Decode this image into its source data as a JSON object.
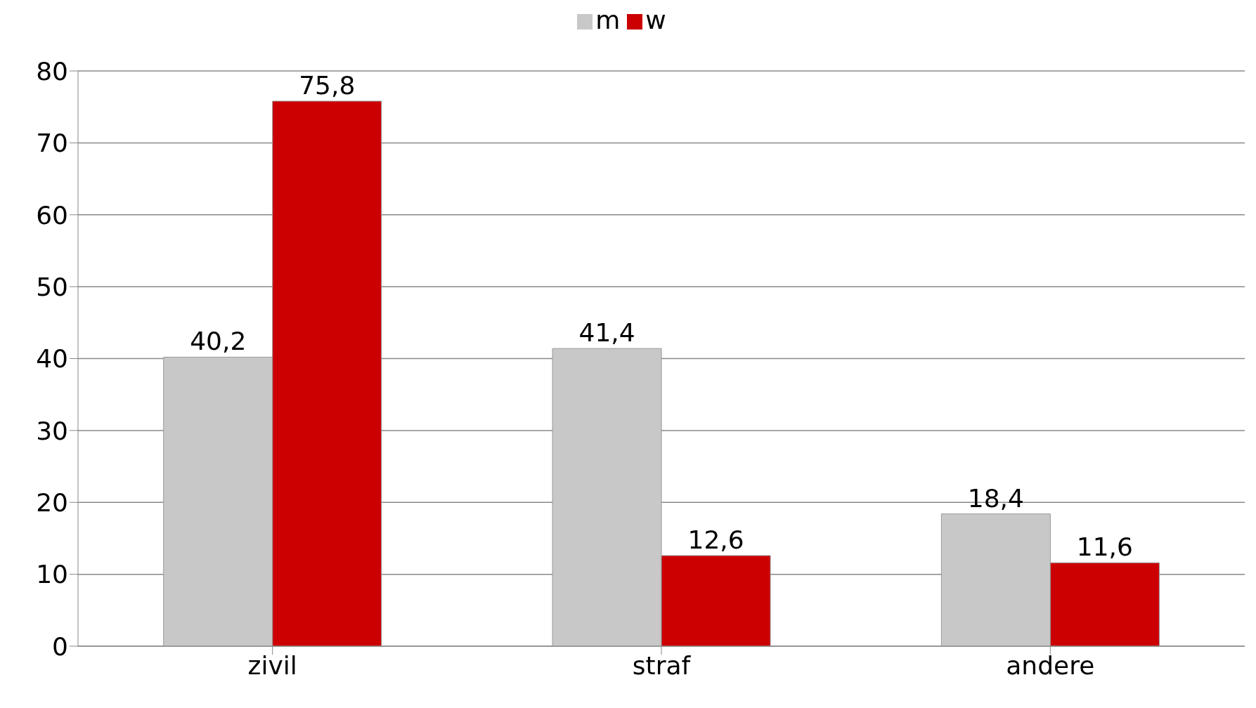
{
  "chart_data": {
    "type": "bar",
    "categories": [
      "zivil",
      "straf",
      "andere"
    ],
    "series": [
      {
        "name": "m",
        "color": "#c8c8c8",
        "values": [
          40.2,
          41.4,
          18.4
        ],
        "value_labels": [
          "40,2",
          "41,4",
          "18,4"
        ]
      },
      {
        "name": "w",
        "color": "#cc0000",
        "values": [
          75.8,
          12.6,
          11.6
        ],
        "value_labels": [
          "75,8",
          "12,6",
          "11,6"
        ]
      }
    ],
    "ylim": [
      0,
      80
    ],
    "yticks": [
      0,
      10,
      20,
      30,
      40,
      50,
      60,
      70,
      80
    ],
    "grid": "y",
    "legend": "top"
  }
}
